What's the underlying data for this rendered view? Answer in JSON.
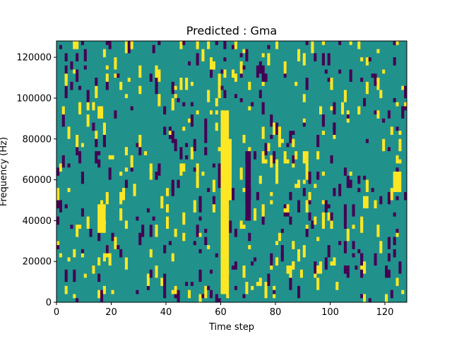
{
  "chart_data": {
    "type": "heatmap",
    "title": "Predicted : Gma",
    "xlabel": "Time step",
    "ylabel": "Frequency (Hz)",
    "xlim": [
      0,
      128
    ],
    "ylim": [
      0,
      128000
    ],
    "xticks": [
      0,
      20,
      40,
      60,
      80,
      100,
      120
    ],
    "yticks": [
      0,
      20000,
      40000,
      60000,
      80000,
      100000,
      120000
    ],
    "xtick_labels": [
      "0",
      "20",
      "40",
      "60",
      "80",
      "100",
      "120"
    ],
    "ytick_labels": [
      "0",
      "20000",
      "40000",
      "60000",
      "80000",
      "100000",
      "120000"
    ],
    "grid": false,
    "colormap": "viridis",
    "value_levels": [
      -1,
      0,
      1
    ],
    "colors": {
      "background": "#21918c",
      "low": "#440154",
      "high": "#fde725"
    },
    "bands": [
      {
        "x0": 60,
        "x1": 63,
        "y0": 4000,
        "y1": 94000,
        "level": 1
      },
      {
        "x0": 62,
        "x1": 64,
        "y0": 50000,
        "y1": 80000,
        "level": 1
      },
      {
        "x0": 69,
        "x1": 71,
        "y0": 40000,
        "y1": 74000,
        "level": -1
      },
      {
        "x0": 15,
        "x1": 18,
        "y0": 34000,
        "y1": 48000,
        "level": 1
      },
      {
        "x0": 123,
        "x1": 126,
        "y0": 54000,
        "y1": 64000,
        "level": 1
      },
      {
        "x0": 112,
        "x1": 114,
        "y0": 46000,
        "y1": 52000,
        "level": 1
      }
    ],
    "nrows": 64,
    "seed": 7,
    "high_density": 0.035,
    "low_density": 0.035
  }
}
